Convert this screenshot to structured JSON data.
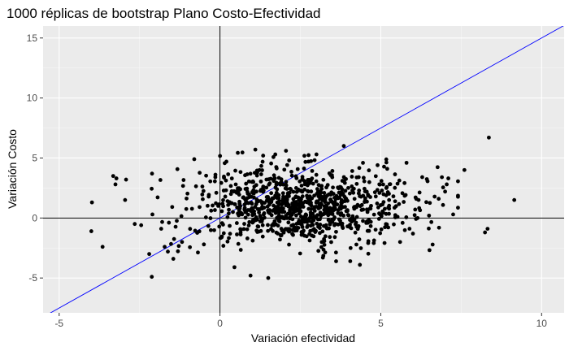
{
  "chart_data": {
    "type": "scatter",
    "title": "1000 réplicas de bootstrap Plano Costo-Efectividad",
    "xlabel": "Variación efectividad",
    "ylabel": "Variación Costo",
    "xlim": [
      -5.5,
      10.7
    ],
    "ylim": [
      -7.9,
      16.0
    ],
    "x_ticks": [
      -5,
      0,
      5,
      10
    ],
    "x_tick_labels": [
      "-5",
      "0",
      "5",
      "10"
    ],
    "y_ticks": [
      -5,
      0,
      5,
      10,
      15
    ],
    "y_tick_labels": [
      "-5",
      "0",
      "5",
      "10",
      "15"
    ],
    "grid": true,
    "legend": "none",
    "reference_lines": {
      "vertical_x": 0,
      "horizontal_y": 0,
      "threshold_line": {
        "intercept": 0,
        "slope": 1.5,
        "color": "#0000ff"
      }
    },
    "n_points": 1000,
    "series": [
      {
        "points": [
          [
            8.36,
            6.7
          ],
          [
            9.15,
            1.5
          ],
          [
            8.24,
            -1.2
          ],
          [
            8.32,
            -0.9
          ],
          [
            7.6,
            4.0
          ],
          [
            7.25,
            0.3
          ],
          [
            7.0,
            2.2
          ],
          [
            6.8,
            1.6
          ],
          [
            6.9,
            3.4
          ],
          [
            7.1,
            3.3
          ],
          [
            7.05,
            2.8
          ],
          [
            -3.98,
            1.3
          ],
          [
            -4.0,
            -1.1
          ],
          [
            -3.65,
            -2.4
          ],
          [
            -3.32,
            3.5
          ],
          [
            -3.22,
            3.3
          ],
          [
            -3.25,
            2.8
          ],
          [
            -2.95,
            1.5
          ],
          [
            -2.92,
            3.2
          ],
          [
            -2.12,
            -4.9
          ],
          [
            -2.2,
            -3.0
          ],
          [
            -2.45,
            -0.6
          ],
          [
            -2.65,
            -0.5
          ],
          [
            -2.1,
            0.3
          ],
          [
            -1.72,
            -2.4
          ],
          [
            -1.45,
            -3.4
          ],
          [
            -1.62,
            -2.8
          ],
          [
            -1.18,
            -2.0
          ],
          [
            0.95,
            -4.8
          ],
          [
            1.5,
            -5.0
          ],
          [
            1.72,
            5.3
          ],
          [
            2.75,
            4.7
          ],
          [
            3.85,
            6.0
          ],
          [
            2.15,
            4.8
          ],
          [
            3.0,
            5.3
          ],
          [
            -0.5,
            -2.2
          ],
          [
            4.35,
            -3.9
          ],
          [
            4.05,
            -3.6
          ],
          [
            3.2,
            -3.3
          ],
          [
            5.6,
            -2.0
          ],
          [
            6.0,
            -1.3
          ],
          [
            6.5,
            0.2
          ],
          [
            0.2,
            4.7
          ],
          [
            1.1,
            5.7
          ],
          [
            4.9,
            4.4
          ],
          [
            5.2,
            4.1
          ],
          [
            5.8,
            4.6
          ],
          [
            0.45,
            -4.1
          ],
          [
            -0.8,
            4.9
          ]
        ]
      }
    ]
  }
}
